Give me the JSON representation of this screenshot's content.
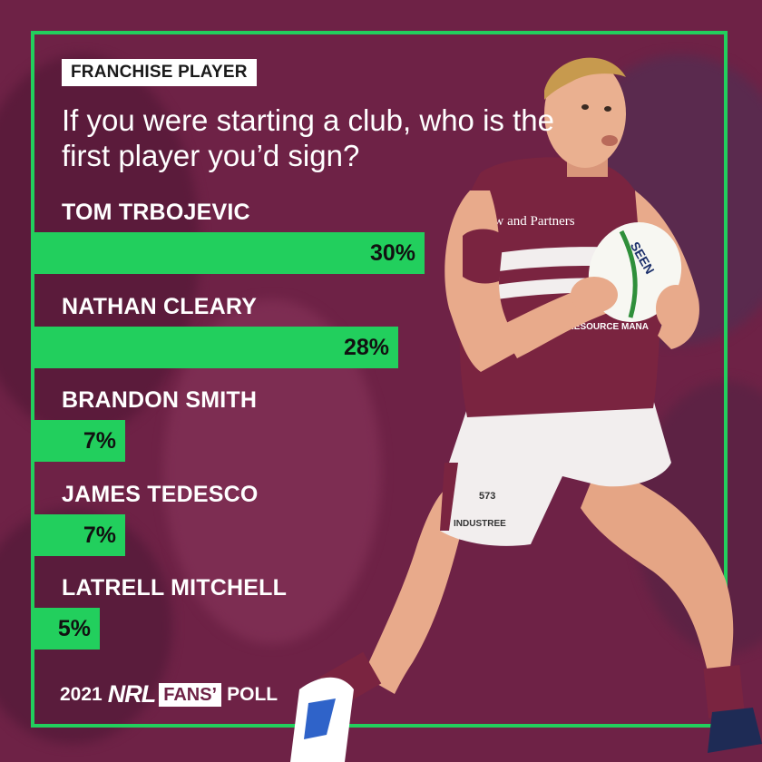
{
  "header": {
    "tag": "FRANCHISE PLAYER",
    "question": "If you were starting a club, who is the first player you’d sign?"
  },
  "chart_data": {
    "type": "bar",
    "categories": [
      "TOM TRBOJEVIC",
      "NATHAN CLEARY",
      "BRANDON SMITH",
      "JAMES TEDESCO",
      "LATRELL MITCHELL"
    ],
    "values": [
      30,
      28,
      7,
      7,
      5
    ],
    "labels": [
      "30%",
      "28%",
      "7%",
      "7%",
      "5%"
    ],
    "unit": "%",
    "title": "If you were starting a club, who is the first player you’d sign?"
  },
  "footer": {
    "year": "2021",
    "nrl": "NRL",
    "fans": "FANS’",
    "poll": "POLL"
  },
  "player": {
    "sponsor_1": "Shaw and Partners",
    "sponsor_2": "ITED RESOURCE MANA",
    "shorts_number": "573",
    "shorts_sponsor": "INDUSTREE"
  },
  "colors": {
    "background": "#6e2246",
    "accent": "#22cf5d",
    "jersey": "#7a2440"
  }
}
